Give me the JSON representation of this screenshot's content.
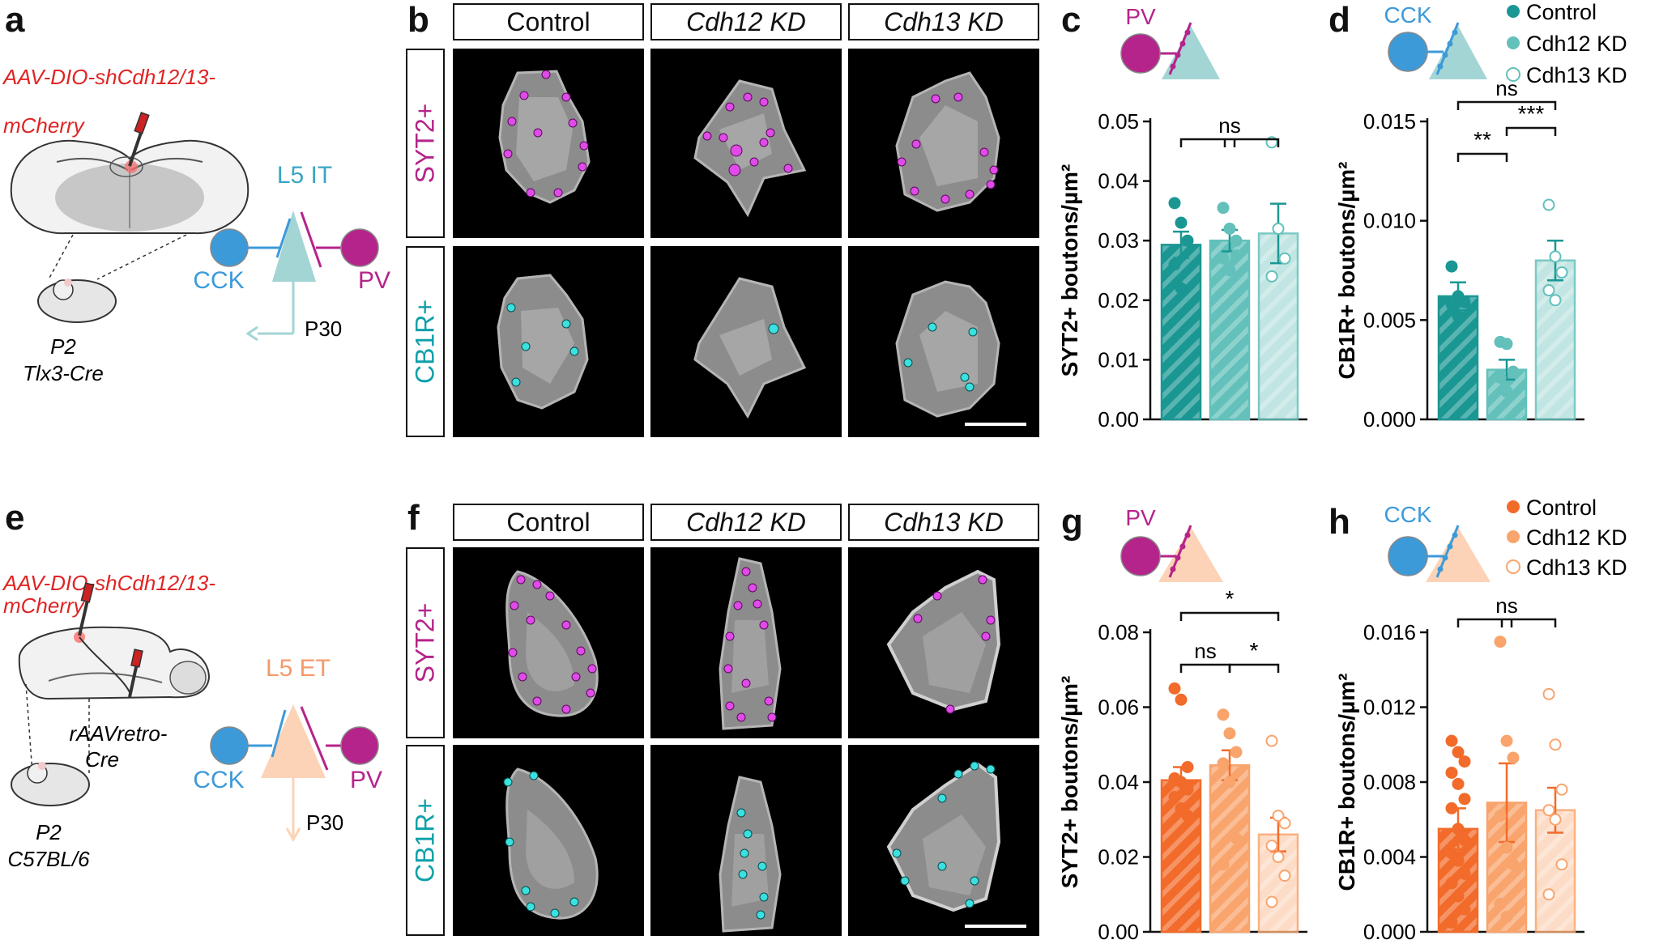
{
  "colors": {
    "pv": "#b5248b",
    "cck": "#3d9ad9",
    "syt2_dot": "#e04be8",
    "cb1r_dot": "#3be0e0",
    "virus_red": "#e02424",
    "it_triangle": "#a3d5d5",
    "et_triangle": "#fcd3b6",
    "it_label": "#3aa6c4",
    "et_label": "#f49a6a",
    "teal_control": "#1a9793",
    "teal_cdh12": "#63c0bb",
    "teal_cdh13": "#b7e1de",
    "orange_control": "#f26b2a",
    "orange_cdh12": "#f8a46c",
    "orange_cdh13": "#fcd7bd"
  },
  "panels": {
    "a": {
      "letter": "a",
      "virus_line1": "AAV-DIO-shCdh12/13-",
      "virus_line2": "mCherry",
      "age": "P2",
      "mouse": "Tlx3-Cre",
      "cell": "L5 IT",
      "cck": "CCK",
      "pv": "PV",
      "time": "P30"
    },
    "b": {
      "letter": "b",
      "columns": [
        "Control",
        "Cdh12 KD",
        "Cdh13 KD"
      ],
      "rows": [
        "SYT2+",
        "CB1R+"
      ]
    },
    "e": {
      "letter": "e",
      "virus_line1": "AAV-DIO-shCdh12/13-",
      "virus_line2": "mCherry",
      "retro_line1": "rAAVretro-",
      "retro_line2": "Cre",
      "age": "P2",
      "mouse": "C57BL/6",
      "cell": "L5 ET",
      "cck": "CCK",
      "pv": "PV",
      "time": "P30"
    },
    "f": {
      "letter": "f",
      "columns": [
        "Control",
        "Cdh12 KD",
        "Cdh13 KD"
      ],
      "rows": [
        "SYT2+",
        "CB1R+"
      ]
    },
    "c": {
      "letter": "c",
      "inset_label": "PV"
    },
    "d": {
      "letter": "d",
      "inset_label": "CCK",
      "legend": [
        "Control",
        "Cdh12 KD",
        "Cdh13 KD"
      ]
    },
    "g": {
      "letter": "g",
      "inset_label": "PV"
    },
    "h": {
      "letter": "h",
      "inset_label": "CCK",
      "legend": [
        "Control",
        "Cdh12 KD",
        "Cdh13 KD"
      ]
    }
  },
  "chart_data": [
    {
      "id": "c",
      "type": "bar",
      "palette": "teal",
      "ylabel": "SYT2+ boutons/µm²",
      "ylim": [
        0,
        0.05
      ],
      "yticks": [
        "0.00",
        "0.01",
        "0.02",
        "0.03",
        "0.04",
        "0.05"
      ],
      "tickvals": [
        0,
        0.01,
        0.02,
        0.03,
        0.04,
        0.05
      ],
      "categories": [
        "Control",
        "Cdh12 KD",
        "Cdh13 KD"
      ],
      "values": [
        0.0293,
        0.03,
        0.0312
      ],
      "errors": [
        0.0022,
        0.0018,
        0.005
      ],
      "points": [
        [
          0.0363,
          0.033,
          0.03,
          0.026,
          0.022
        ],
        [
          0.0355,
          0.032,
          0.03,
          0.027,
          0.025,
          0.0275
        ],
        [
          0.0465,
          0.032,
          0.027,
          0.024
        ]
      ],
      "annotations": [
        {
          "text": "ns",
          "from": 0,
          "to": 2,
          "level": 0
        }
      ]
    },
    {
      "id": "d",
      "type": "bar",
      "palette": "teal",
      "ylabel": "CB1R+ boutons/µm²",
      "ylim": [
        0,
        0.015
      ],
      "yticks": [
        "0.000",
        "0.005",
        "0.010",
        "0.015"
      ],
      "tickvals": [
        0,
        0.005,
        0.01,
        0.015
      ],
      "categories": [
        "Control",
        "Cdh12 KD",
        "Cdh13 KD"
      ],
      "values": [
        0.0062,
        0.0025,
        0.008
      ],
      "errors": [
        0.0007,
        0.0005,
        0.001
      ],
      "points": [
        [
          0.0077,
          0.0062,
          0.0059,
          0.0058,
          0.0052
        ],
        [
          0.0039,
          0.0038,
          0.0024,
          0.0021,
          0.0014
        ],
        [
          0.0108,
          0.0082,
          0.0074,
          0.0065,
          0.006
        ]
      ],
      "annotations": [
        {
          "text": "ns",
          "from": 0,
          "to": 2,
          "level": 2
        },
        {
          "text": "**",
          "from": 0,
          "to": 1,
          "level": 0
        },
        {
          "text": "***",
          "from": 1,
          "to": 2,
          "level": 1
        }
      ]
    },
    {
      "id": "g",
      "type": "bar",
      "palette": "orange",
      "ylabel": "SYT2+ boutons/µm²",
      "ylim": [
        0,
        0.08
      ],
      "yticks": [
        "0.00",
        "0.02",
        "0.04",
        "0.06",
        "0.08"
      ],
      "tickvals": [
        0,
        0.02,
        0.04,
        0.06,
        0.08
      ],
      "categories": [
        "Control",
        "Cdh12 KD",
        "Cdh13 KD"
      ],
      "values": [
        0.0405,
        0.0445,
        0.026
      ],
      "errors": [
        0.0035,
        0.004,
        0.0045
      ],
      "points": [
        [
          0.065,
          0.062,
          0.044,
          0.041,
          0.04,
          0.038,
          0.036,
          0.033,
          0.031
        ],
        [
          0.058,
          0.053,
          0.048,
          0.045,
          0.04,
          0.025,
          0.018
        ],
        [
          0.051,
          0.031,
          0.029,
          0.023,
          0.02,
          0.015,
          0.008
        ]
      ],
      "annotations": [
        {
          "text": "*",
          "from": 0,
          "to": 2,
          "level": 2
        },
        {
          "text": "ns",
          "from": 0,
          "to": 1,
          "level": 0
        },
        {
          "text": "*",
          "from": 1,
          "to": 2,
          "level": 0
        }
      ]
    },
    {
      "id": "h",
      "type": "bar",
      "palette": "orange",
      "ylabel": "CB1R+ boutons/µm²",
      "ylim": [
        0,
        0.016
      ],
      "yticks": [
        "0.000",
        "0.004",
        "0.008",
        "0.012",
        "0.016"
      ],
      "tickvals": [
        0,
        0.004,
        0.008,
        0.012,
        0.016
      ],
      "categories": [
        "Control",
        "Cdh12 KD",
        "Cdh13 KD"
      ],
      "values": [
        0.0055,
        0.0069,
        0.0065
      ],
      "errors": [
        0.0011,
        0.0021,
        0.0012
      ],
      "points": [
        [
          0.0102,
          0.0096,
          0.0091,
          0.0085,
          0.0079,
          0.0071,
          0.0066,
          0.0055,
          0.0049,
          0.0042,
          0.0038,
          0.0031,
          0.0026,
          0.0019,
          0.0012,
          0.0005
        ],
        [
          0.0155,
          0.0102,
          0.0093,
          0.0062,
          0.0045,
          0.0036,
          0.0015,
          0.0008
        ],
        [
          0.0127,
          0.01,
          0.0076,
          0.0065,
          0.006,
          0.0036,
          0.002
        ]
      ],
      "annotations": [
        {
          "text": "ns",
          "from": 0,
          "to": 2,
          "level": 0
        }
      ]
    }
  ]
}
